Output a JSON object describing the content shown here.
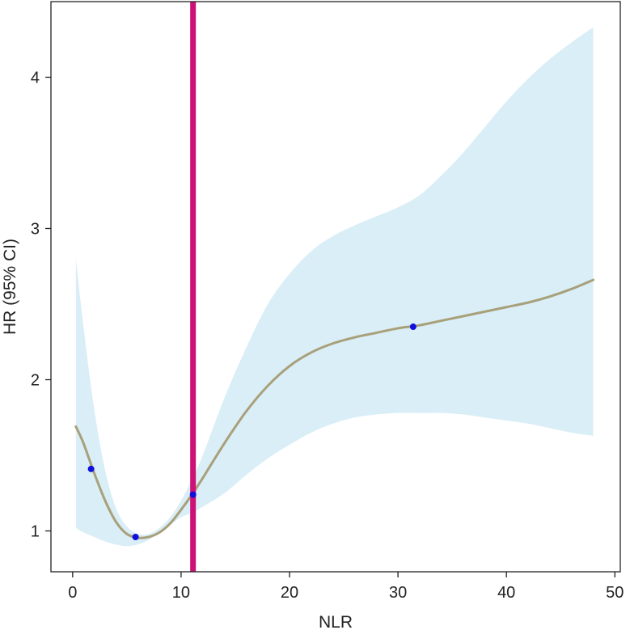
{
  "chart_data": {
    "type": "line",
    "xlabel": "NLR",
    "ylabel": "HR (95% CI)",
    "xlim": [
      -2,
      50.5
    ],
    "ylim": [
      0.73,
      4.5
    ],
    "x_ticks": [
      0,
      10,
      20,
      30,
      40,
      50
    ],
    "y_ticks": [
      1,
      2,
      3,
      4
    ],
    "grid": false,
    "series": [
      {
        "role": "hr-curve",
        "x": [
          0.3,
          1.0,
          2.0,
          3.0,
          4.0,
          5.0,
          6.0,
          7.0,
          8.0,
          9.0,
          10.0,
          11.0,
          12.0,
          14.0,
          16.0,
          18.0,
          20.0,
          22.0,
          24.0,
          26.0,
          28.0,
          30.0,
          32.0,
          34.0,
          36.0,
          38.0,
          40.0,
          42.0,
          44.0,
          46.0,
          48.0
        ],
        "y": [
          1.69,
          1.58,
          1.38,
          1.2,
          1.06,
          0.98,
          0.955,
          0.96,
          0.99,
          1.05,
          1.14,
          1.24,
          1.35,
          1.58,
          1.79,
          1.96,
          2.09,
          2.18,
          2.24,
          2.28,
          2.31,
          2.34,
          2.36,
          2.39,
          2.42,
          2.45,
          2.48,
          2.51,
          2.55,
          2.6,
          2.66
        ]
      }
    ],
    "ci_band": {
      "x": [
        0.3,
        1.0,
        2.0,
        3.0,
        4.0,
        5.0,
        6.0,
        7.0,
        8.0,
        9.0,
        10.0,
        11.0,
        12.0,
        14.0,
        16.0,
        18.0,
        20.0,
        22.0,
        24.0,
        26.0,
        28.0,
        30.0,
        32.0,
        34.0,
        36.0,
        38.0,
        40.0,
        42.0,
        44.0,
        46.0,
        48.0
      ],
      "lower": [
        1.02,
        0.99,
        0.96,
        0.93,
        0.91,
        0.9,
        0.91,
        0.94,
        0.99,
        1.04,
        1.09,
        1.12,
        1.16,
        1.25,
        1.37,
        1.48,
        1.57,
        1.65,
        1.71,
        1.75,
        1.77,
        1.78,
        1.78,
        1.78,
        1.77,
        1.75,
        1.73,
        1.71,
        1.68,
        1.65,
        1.63
      ],
      "upper": [
        2.8,
        2.35,
        1.8,
        1.4,
        1.15,
        1.03,
        0.98,
        0.98,
        1.02,
        1.09,
        1.2,
        1.34,
        1.5,
        1.88,
        2.21,
        2.5,
        2.7,
        2.85,
        2.95,
        3.02,
        3.08,
        3.14,
        3.22,
        3.35,
        3.5,
        3.67,
        3.84,
        3.99,
        4.12,
        4.23,
        4.33
      ]
    },
    "points": [
      {
        "x": 1.7,
        "y": 1.41
      },
      {
        "x": 5.8,
        "y": 0.96
      },
      {
        "x": 11.1,
        "y": 1.24
      },
      {
        "x": 31.4,
        "y": 2.35
      }
    ],
    "reference_line_x": 11.1,
    "colors": {
      "curve": "#a8a07a",
      "band": "#d9eef6",
      "points": "#1010dd",
      "reference_line": "#cc1177",
      "axis": "#222222"
    }
  }
}
